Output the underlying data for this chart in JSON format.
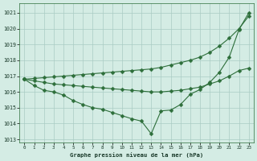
{
  "background_color": "#d4ece4",
  "grid_color": "#aaccc4",
  "line_color": "#2d6e3a",
  "title": "Graphe pression niveau de la mer (hPa)",
  "xlim": [
    -0.5,
    23.5
  ],
  "ylim": [
    1012.8,
    1021.6
  ],
  "yticks": [
    1013,
    1014,
    1015,
    1016,
    1017,
    1018,
    1019,
    1020,
    1021
  ],
  "xticks": [
    0,
    1,
    2,
    3,
    4,
    5,
    6,
    7,
    8,
    9,
    10,
    11,
    12,
    13,
    14,
    15,
    16,
    17,
    18,
    19,
    20,
    21,
    22,
    23
  ],
  "line_top": [
    1016.8,
    1016.85,
    1016.9,
    1016.95,
    1017.0,
    1017.05,
    1017.1,
    1017.15,
    1017.2,
    1017.25,
    1017.3,
    1017.35,
    1017.4,
    1017.45,
    1017.55,
    1017.7,
    1017.85,
    1018.0,
    1018.2,
    1018.5,
    1018.9,
    1019.4,
    1020.0,
    1020.8
  ],
  "line_mid": [
    1016.8,
    1016.7,
    1016.6,
    1016.5,
    1016.45,
    1016.4,
    1016.35,
    1016.3,
    1016.25,
    1016.2,
    1016.15,
    1016.1,
    1016.05,
    1016.0,
    1016.0,
    1016.05,
    1016.1,
    1016.2,
    1016.3,
    1016.5,
    1016.7,
    1017.0,
    1017.35,
    1017.5
  ],
  "line_bot": [
    1016.8,
    1016.4,
    1016.1,
    1016.0,
    1015.8,
    1015.45,
    1015.2,
    1015.0,
    1014.9,
    1014.7,
    1014.5,
    1014.3,
    1014.15,
    1013.35,
    1014.8,
    1014.85,
    1015.2,
    1015.85,
    1016.15,
    1016.6,
    1017.25,
    1018.2,
    1019.95,
    1021.0
  ],
  "marker": "D",
  "markersize": 2.5
}
